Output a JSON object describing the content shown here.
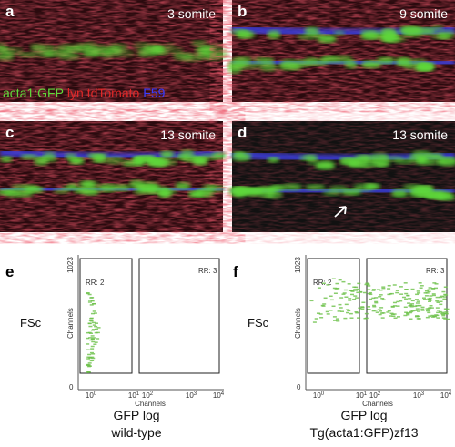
{
  "panels": [
    {
      "letter": "a",
      "stage": "3 somite"
    },
    {
      "letter": "b",
      "stage": "9 somite"
    },
    {
      "letter": "c",
      "stage": "13 somite"
    },
    {
      "letter": "d",
      "stage": "13 somite"
    }
  ],
  "legend": {
    "green": "acta1:GFP",
    "red": "lyn tdTomato",
    "blue": "F59"
  },
  "plots": [
    {
      "letter": "e",
      "y_label": "FSc",
      "y_axis_title": "Channels",
      "y_top": "1023",
      "y_bottom": "0",
      "gate_left": "RR: 2",
      "gate_right": "RR: 3",
      "x_axis_title": "Channels",
      "x_ticks": [
        {
          "base": "10",
          "exp": "0"
        },
        {
          "base": "10",
          "exp": "1"
        },
        {
          "base": "10",
          "exp": "2"
        },
        {
          "base": "10",
          "exp": "3"
        },
        {
          "base": "10",
          "exp": "4"
        }
      ],
      "x_label": "GFP log",
      "caption": "wild-type"
    },
    {
      "letter": "f",
      "y_label": "FSc",
      "y_axis_title": "Channels",
      "y_top": "1023",
      "y_bottom": "0",
      "gate_left": "RR: 2",
      "gate_right": "RR: 3",
      "x_axis_title": "Channels",
      "x_ticks": [
        {
          "base": "10",
          "exp": "0"
        },
        {
          "base": "10",
          "exp": "1"
        },
        {
          "base": "10",
          "exp": "2"
        },
        {
          "base": "10",
          "exp": "3"
        },
        {
          "base": "10",
          "exp": "4"
        }
      ],
      "x_label": "GFP log",
      "caption": "Tg(acta1:GFP)zf13"
    }
  ]
}
